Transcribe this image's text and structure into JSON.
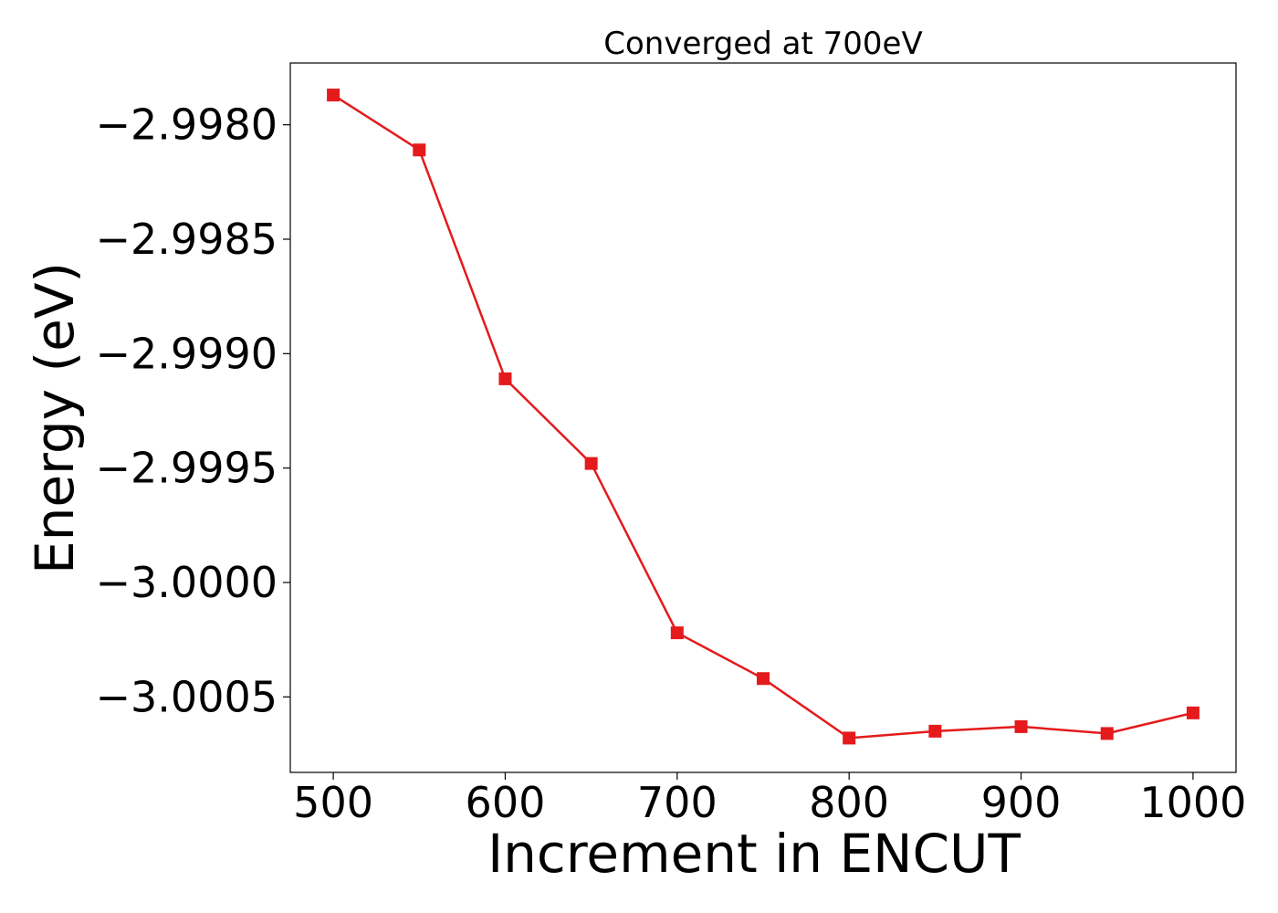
{
  "chart_data": {
    "type": "line",
    "title": "Converged at 700eV",
    "xlabel": "Increment in ENCUT",
    "ylabel": "Energy (eV)",
    "x": [
      500,
      550,
      600,
      650,
      700,
      750,
      800,
      850,
      900,
      950,
      1000
    ],
    "series": [
      {
        "name": "",
        "values": [
          -2.99787,
          -2.99811,
          -2.99911,
          -2.99948,
          -3.00022,
          -3.00042,
          -3.00068,
          -3.00065,
          -3.00063,
          -3.00066,
          -3.00057
        ]
      }
    ],
    "xticks": [
      500,
      600,
      700,
      800,
      900,
      1000
    ],
    "xtick_labels": [
      "500",
      "600",
      "700",
      "800",
      "900",
      "1000"
    ],
    "yticks": [
      -2.998,
      -2.9985,
      -2.999,
      -2.9995,
      -3.0,
      -3.0005
    ],
    "ytick_labels": [
      "−2.9980",
      "−2.9985",
      "−2.9990",
      "−2.9995",
      "−3.0000",
      "−3.0005"
    ],
    "xlim": [
      475,
      1025
    ],
    "ylim": [
      -3.00083,
      -2.99773
    ],
    "grid": false,
    "legend": "none",
    "marker": "square",
    "color": "#e41a1c"
  }
}
